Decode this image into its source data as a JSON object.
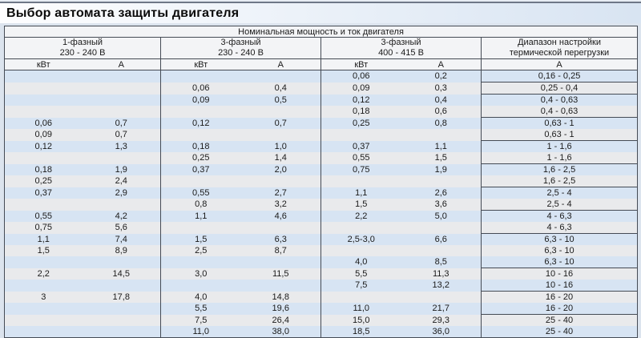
{
  "page": {
    "title": "Выбор автомата защиты двигателя"
  },
  "colors": {
    "page_bg": "#dce4ee",
    "titlebar_gradient_start": "#fdfdfe",
    "titlebar_gradient_end": "#d8e4f2",
    "top_line": "#6e7787",
    "header_bg": "#f3f4f6",
    "row_blue": "#d7e4f3",
    "row_gray": "#e9eaec",
    "border": "#454b55",
    "text": "#1a1a1a"
  },
  "table": {
    "top_header": "Номинальная мощность и ток двигателя",
    "groups": [
      {
        "line1": "1-фазный",
        "line2": "230 - 240 В",
        "subcols": [
          "кВт",
          "А"
        ]
      },
      {
        "line1": "3-фазный",
        "line2": "230 - 240 В",
        "subcols": [
          "кВт",
          "А"
        ]
      },
      {
        "line1": "3-фазный",
        "line2": "400 - 415 В",
        "subcols": [
          "кВт",
          "А"
        ]
      },
      {
        "line1": "Диапазон настройки",
        "line2": "термической перегрузки",
        "subcols": [
          "А"
        ]
      }
    ],
    "rows": [
      [
        "",
        "",
        "",
        "",
        "0,06",
        "0,2",
        "0,16 - 0,25"
      ],
      [
        "",
        "",
        "0,06",
        "0,4",
        "0,09",
        "0,3",
        "0,25 - 0,4"
      ],
      [
        "",
        "",
        "0,09",
        "0,5",
        "0,12",
        "0,4",
        "0,4 - 0,63"
      ],
      [
        "",
        "",
        "",
        "",
        "0,18",
        "0,6",
        "0,4 - 0,63"
      ],
      [
        "0,06",
        "0,7",
        "0,12",
        "0,7",
        "0,25",
        "0,8",
        "0,63 - 1"
      ],
      [
        "0,09",
        "0,7",
        "",
        "",
        "",
        "",
        "0,63 - 1"
      ],
      [
        "0,12",
        "1,3",
        "0,18",
        "1,0",
        "0,37",
        "1,1",
        "1 - 1,6"
      ],
      [
        "",
        "",
        "0,25",
        "1,4",
        "0,55",
        "1,5",
        "1 - 1,6"
      ],
      [
        "0,18",
        "1,9",
        "0,37",
        "2,0",
        "0,75",
        "1,9",
        "1,6 - 2,5"
      ],
      [
        "0,25",
        "2,4",
        "",
        "",
        "",
        "",
        "1,6 - 2,5"
      ],
      [
        "0,37",
        "2,9",
        "0,55",
        "2,7",
        "1,1",
        "2,6",
        "2,5 - 4"
      ],
      [
        "",
        "",
        "0,8",
        "3,2",
        "1,5",
        "3,6",
        "2,5 - 4"
      ],
      [
        "0,55",
        "4,2",
        "1,1",
        "4,6",
        "2,2",
        "5,0",
        "4 - 6,3"
      ],
      [
        "0,75",
        "5,6",
        "",
        "",
        "",
        "",
        "4 - 6,3"
      ],
      [
        "1,1",
        "7,4",
        "1,5",
        "6,3",
        "2,5-3,0",
        "6,6",
        "6,3 - 10"
      ],
      [
        "1,5",
        "8,9",
        "2,5",
        "8,7",
        "",
        "",
        "6,3 - 10"
      ],
      [
        "",
        "",
        "",
        "",
        "4,0",
        "8,5",
        "6,3 - 10"
      ],
      [
        "2,2",
        "14,5",
        "3,0",
        "11,5",
        "5,5",
        "11,3",
        "10 - 16"
      ],
      [
        "",
        "",
        "",
        "",
        "7,5",
        "13,2",
        "10 - 16"
      ],
      [
        "3",
        "17,8",
        "4,0",
        "14,8",
        "",
        "",
        "16 - 20"
      ],
      [
        "",
        "",
        "5,5",
        "19,6",
        "11,0",
        "21,7",
        "16 - 20"
      ],
      [
        "",
        "",
        "7,5",
        "26,4",
        "15,0",
        "29,3",
        "25 - 40"
      ],
      [
        "",
        "",
        "11,0",
        "38,0",
        "18,5",
        "36,0",
        "25 - 40"
      ]
    ]
  }
}
